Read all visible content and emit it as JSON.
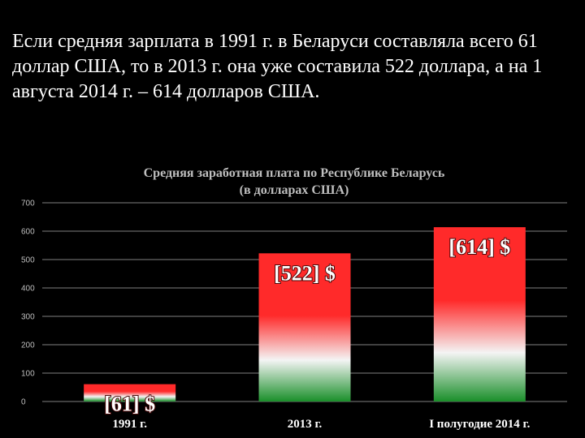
{
  "intro_text": "Если средняя зарплата в 1991 г. в Беларуси составляла всего 61 доллар США, то в 2013 г. она уже составила 522 доллара, а на 1 августа 2014 г. – 614 долларов США.",
  "chart_data": {
    "type": "bar",
    "title": "Средняя заработная плата по Республике Беларусь",
    "subtitle": "(в долларах США)",
    "categories": [
      "1991 г.",
      "2013 г.",
      "I полугодие 2014 г."
    ],
    "values": [
      61,
      522,
      614
    ],
    "data_labels": [
      "[61] $",
      "[522] $",
      "[614] $"
    ],
    "yticks": [
      "0",
      "100",
      "200",
      "300",
      "400",
      "500",
      "600",
      "700"
    ],
    "ylim": [
      0,
      700
    ],
    "grid": true,
    "legend": "none",
    "colors": {
      "bar_top": "#ff2a2a",
      "bar_mid": "#f4f4f4",
      "bar_bottom": "#1a8f2a",
      "grid": "#7f7f7f",
      "background": "#000000"
    }
  }
}
